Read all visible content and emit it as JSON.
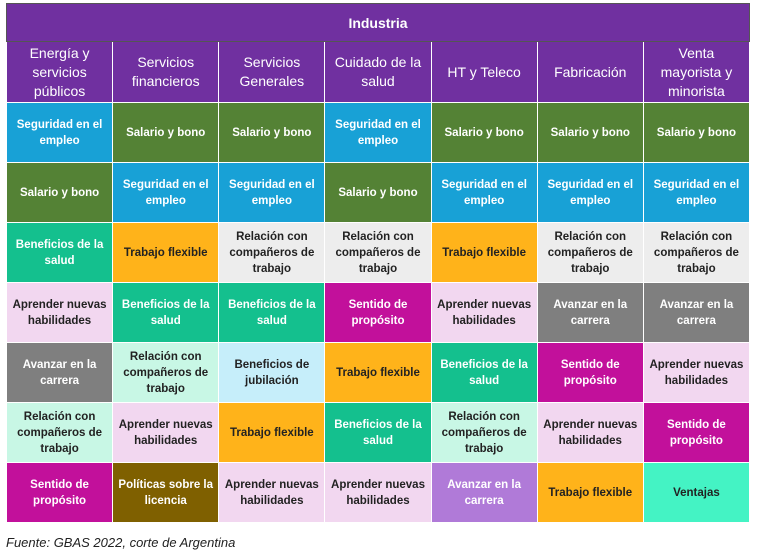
{
  "header": {
    "title": "Industria"
  },
  "table": {
    "columns": [
      "Energía y servicios públicos",
      "Servicios financieros",
      "Servicios Generales",
      "Cuidado de la salud",
      "HT y Teleco",
      "Fabricación",
      "Venta mayorista y minorista"
    ],
    "rows": [
      [
        "Seguridad en el empleo",
        "Salario y bono",
        "Salario y bono",
        "Seguridad en el empleo",
        "Salario y bono",
        "Salario y bono",
        "Salario y bono"
      ],
      [
        "Salario y bono",
        "Seguridad en el empleo",
        "Seguridad en el empleo",
        "Salario y bono",
        "Seguridad en el empleo",
        "Seguridad en el empleo",
        "Seguridad en el empleo"
      ],
      [
        "Beneficios de la salud",
        "Trabajo flexible",
        "Relación con compañeros de trabajo",
        "Relación con compañeros de trabajo",
        "Trabajo flexible",
        "Relación con compañeros de trabajo",
        "Relación con compañeros de trabajo"
      ],
      [
        "Aprender nuevas habilidades",
        "Beneficios de la salud",
        "Beneficios de la salud",
        "Sentido de propósito",
        "Aprender nuevas habilidades",
        "Avanzar en la carrera",
        "Avanzar en la carrera"
      ],
      [
        "Avanzar en la carrera",
        "Relación con compañeros de trabajo",
        "Beneficios de jubilación",
        "Trabajo flexible",
        "Beneficios de la salud",
        "Sentido de propósito",
        "Aprender nuevas habilidades"
      ],
      [
        "Relación con compañeros de trabajo",
        "Aprender nuevas habilidades",
        "Trabajo flexible",
        "Beneficios de la salud",
        "Relación con compañeros de trabajo",
        "Aprender nuevas habilidades",
        "Sentido de propósito"
      ],
      [
        "Sentido de propósito",
        "Políticas sobre la licencia",
        "Aprender nuevas habilidades",
        "Aprender nuevas habilidades",
        "Avanzar en la carrera",
        "Trabajo flexible",
        "Ventajas"
      ]
    ]
  },
  "footer": {
    "source": "Fuente: GBAS 2022, corte de Argentina"
  }
}
